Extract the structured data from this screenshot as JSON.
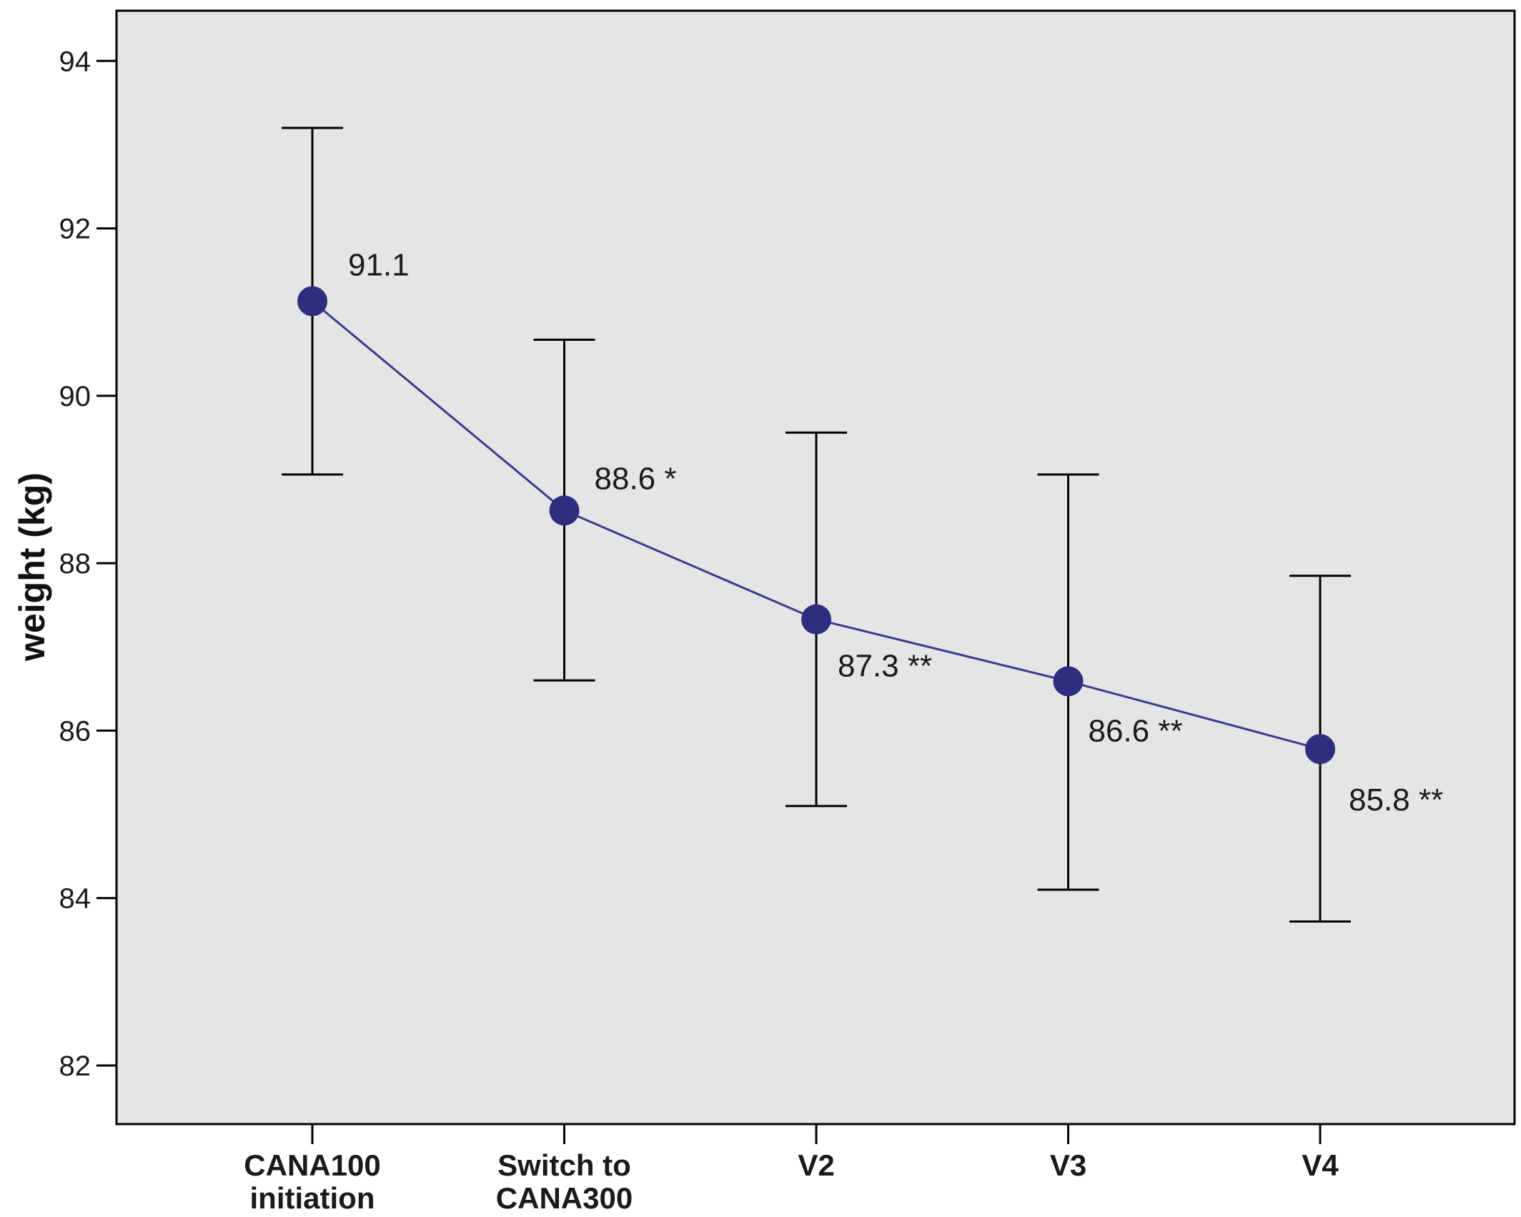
{
  "chart_data": {
    "type": "line",
    "title": "",
    "xlabel": "",
    "ylabel": "weight (kg)",
    "ylim": [
      81.3,
      94.6
    ],
    "yticks": [
      82,
      84,
      86,
      88,
      90,
      92,
      94
    ],
    "grid": false,
    "categories": [
      [
        "CANA100",
        "initiation"
      ],
      [
        "Switch to",
        "CANA300"
      ],
      [
        "V2"
      ],
      [
        "V3"
      ],
      [
        "V4"
      ]
    ],
    "series": [
      {
        "name": "weight",
        "values": [
          91.13,
          88.63,
          87.33,
          86.59,
          85.78
        ],
        "error_low": [
          89.06,
          86.6,
          85.1,
          84.1,
          83.72
        ],
        "error_high": [
          93.2,
          90.67,
          89.56,
          89.06,
          87.85
        ],
        "labels": [
          "91.1",
          "88.6 *",
          "87.3 **",
          "86.6 **",
          "85.8 **"
        ]
      }
    ],
    "colors": {
      "line": "#3b3b8f",
      "marker": "#2e2e80",
      "error_bar": "#000000",
      "plot_background": "#e5e5e5"
    }
  }
}
